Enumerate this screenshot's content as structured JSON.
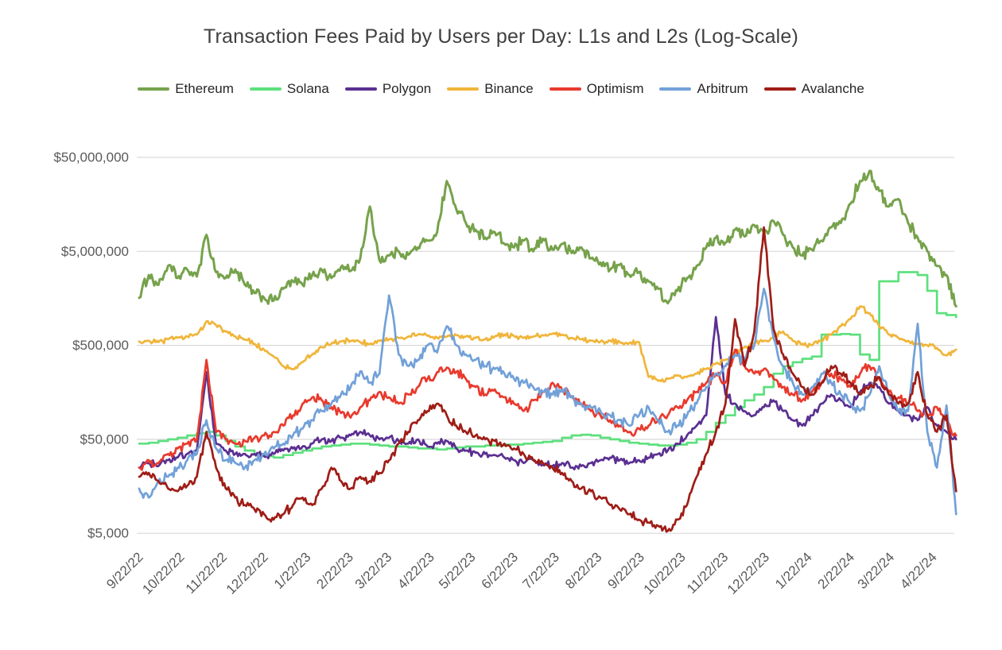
{
  "page": {
    "background": "#ffffff",
    "text_color": "#404040"
  },
  "chart_data": {
    "type": "line",
    "title": "Transaction Fees Paid by Users per Day: L1s and L2s (Log-Scale)",
    "legend_position": "top",
    "grid": "horizontal gridlines only, light gray",
    "y_axis": {
      "scale": "log",
      "unit": "USD of fees per day",
      "tick_labels": [
        "$50,000,000",
        "$5,000,000",
        "$500,000",
        "$50,000",
        "$5,000"
      ],
      "tick_values": [
        50000000,
        5000000,
        500000,
        50000,
        5000
      ],
      "range": [
        5000,
        50000000
      ]
    },
    "x_axis": {
      "tick_labels": [
        "9/22/22",
        "10/22/22",
        "11/22/22",
        "12/22/22",
        "1/22/23",
        "2/22/23",
        "3/22/23",
        "4/22/23",
        "5/22/23",
        "6/22/23",
        "7/22/23",
        "8/22/23",
        "9/22/23",
        "10/22/23",
        "11/22/23",
        "12/22/23",
        "1/22/24",
        "2/22/24",
        "3/22/24",
        "4/22/24"
      ],
      "start_date": "9/22/22",
      "end_date": "5/6/24",
      "label_rotation_deg": 45
    },
    "sampling": "weekly samples read from daily chart; index 0 = 9/22/22, step = 7 days, 86 points per series",
    "series": [
      {
        "name": "Ethereum",
        "color": "#76a24b",
        "line_style": "solid",
        "values": [
          1600000,
          2800000,
          2200000,
          3500000,
          2600000,
          3200000,
          2700000,
          7500000,
          3000000,
          2600000,
          3200000,
          2200000,
          1800000,
          1600000,
          1500000,
          2000000,
          2400000,
          2200000,
          2800000,
          3200000,
          2600000,
          3400000,
          3100000,
          4200000,
          15000000,
          4000000,
          4500000,
          5000000,
          4600000,
          5500000,
          6500000,
          8000000,
          28000000,
          14000000,
          10000000,
          8500000,
          7000000,
          8000000,
          6000000,
          5500000,
          6500000,
          5000000,
          6800000,
          5200000,
          6000000,
          4800000,
          5500000,
          4200000,
          3800000,
          3200000,
          3600000,
          2800000,
          3000000,
          2400000,
          2000000,
          1400000,
          1900000,
          2600000,
          3500000,
          5500000,
          7000000,
          6200000,
          8500000,
          7200000,
          9500000,
          8000000,
          10500000,
          7500000,
          5500000,
          4500000,
          5200000,
          6500000,
          9000000,
          10000000,
          16000000,
          28000000,
          36000000,
          22000000,
          15000000,
          18000000,
          10000000,
          7000000,
          5000000,
          3500000,
          2800000,
          1300000
        ]
      },
      {
        "name": "Solana",
        "color": "#5de07d",
        "line_style": "step",
        "values": [
          45000,
          46000,
          48000,
          50000,
          52000,
          55000,
          58000,
          60000,
          55000,
          48000,
          42000,
          38000,
          35000,
          33000,
          32000,
          34000,
          36000,
          38000,
          40000,
          42000,
          43000,
          44000,
          45000,
          45000,
          44000,
          43000,
          42000,
          42000,
          41000,
          40000,
          40000,
          39000,
          40000,
          41000,
          42000,
          42000,
          43000,
          43000,
          44000,
          44000,
          45000,
          46000,
          47000,
          48000,
          52000,
          55000,
          56000,
          55000,
          52000,
          50000,
          48000,
          46000,
          45000,
          44000,
          43000,
          43000,
          44000,
          46000,
          50000,
          60000,
          75000,
          90000,
          110000,
          130000,
          150000,
          180000,
          250000,
          300000,
          330000,
          360000,
          380000,
          650000,
          650000,
          660000,
          650000,
          400000,
          350000,
          2400000,
          2400000,
          3000000,
          3000000,
          2800000,
          1900000,
          1100000,
          1050000,
          1000000
        ]
      },
      {
        "name": "Polygon",
        "color": "#5b2f91",
        "line_style": "solid",
        "values": [
          25000,
          28000,
          26000,
          30000,
          32000,
          35000,
          38000,
          260000,
          45000,
          38000,
          35000,
          35000,
          35000,
          33000,
          35000,
          38000,
          40000,
          42000,
          45000,
          50000,
          48000,
          52000,
          55000,
          60000,
          55000,
          50000,
          52000,
          48000,
          45000,
          50000,
          42000,
          45000,
          48000,
          40000,
          38000,
          36000,
          35000,
          34000,
          32000,
          30000,
          28000,
          30000,
          27000,
          26000,
          28000,
          25000,
          26000,
          28000,
          30000,
          32000,
          30000,
          28000,
          30000,
          32000,
          35000,
          38000,
          45000,
          55000,
          70000,
          90000,
          1000000,
          150000,
          120000,
          100000,
          90000,
          110000,
          130000,
          100000,
          80000,
          70000,
          90000,
          120000,
          150000,
          130000,
          110000,
          160000,
          200000,
          180000,
          120000,
          100000,
          90000,
          80000,
          110000,
          70000,
          60000,
          50000
        ]
      },
      {
        "name": "Binance",
        "color": "#f0b53a",
        "line_style": "solid",
        "values": [
          550000,
          560000,
          540000,
          580000,
          600000,
          620000,
          650000,
          900000,
          820000,
          700000,
          620000,
          580000,
          520000,
          450000,
          380000,
          300000,
          280000,
          330000,
          400000,
          480000,
          520000,
          550000,
          560000,
          540000,
          520000,
          560000,
          580000,
          600000,
          620000,
          650000,
          630000,
          600000,
          620000,
          640000,
          620000,
          600000,
          580000,
          620000,
          650000,
          630000,
          600000,
          620000,
          640000,
          660000,
          650000,
          600000,
          580000,
          560000,
          550000,
          560000,
          540000,
          530000,
          540000,
          230000,
          210000,
          220000,
          240000,
          230000,
          250000,
          280000,
          320000,
          350000,
          420000,
          480000,
          520000,
          560000,
          620000,
          700000,
          560000,
          520000,
          500000,
          560000,
          650000,
          800000,
          950000,
          1300000,
          1100000,
          800000,
          650000,
          600000,
          560000,
          520000,
          500000,
          470000,
          390000,
          450000
        ]
      },
      {
        "name": "Optimism",
        "color": "#e83a2d",
        "line_style": "solid",
        "values": [
          25000,
          30000,
          28000,
          35000,
          40000,
          45000,
          50000,
          350000,
          60000,
          50000,
          45000,
          48000,
          52000,
          55000,
          60000,
          70000,
          90000,
          120000,
          140000,
          130000,
          110000,
          95000,
          85000,
          110000,
          130000,
          160000,
          140000,
          120000,
          150000,
          180000,
          220000,
          260000,
          290000,
          260000,
          220000,
          180000,
          150000,
          170000,
          140000,
          120000,
          100000,
          130000,
          160000,
          200000,
          170000,
          140000,
          120000,
          100000,
          90000,
          80000,
          70000,
          60000,
          65000,
          70000,
          80000,
          90000,
          110000,
          130000,
          160000,
          200000,
          250000,
          200000,
          450000,
          300000,
          250000,
          280000,
          220000,
          180000,
          150000,
          130000,
          160000,
          200000,
          250000,
          220000,
          180000,
          250000,
          300000,
          220000,
          160000,
          140000,
          120000,
          100000,
          90000,
          110000,
          80000,
          55000
        ]
      },
      {
        "name": "Arbitrum",
        "color": "#72a1d8",
        "line_style": "solid",
        "values": [
          15000,
          12000,
          18000,
          20000,
          25000,
          30000,
          35000,
          80000,
          40000,
          30000,
          28000,
          25000,
          30000,
          35000,
          40000,
          45000,
          55000,
          65000,
          80000,
          100000,
          120000,
          150000,
          180000,
          265000,
          200000,
          250000,
          1700000,
          400000,
          300000,
          350000,
          500000,
          420000,
          800000,
          500000,
          400000,
          350000,
          300000,
          280000,
          250000,
          220000,
          200000,
          180000,
          160000,
          150000,
          170000,
          140000,
          120000,
          110000,
          100000,
          90000,
          80000,
          70000,
          90000,
          110000,
          80000,
          60000,
          70000,
          90000,
          120000,
          180000,
          250000,
          300000,
          400000,
          350000,
          500000,
          2000000,
          600000,
          300000,
          200000,
          150000,
          180000,
          250000,
          200000,
          150000,
          120000,
          100000,
          150000,
          300000,
          150000,
          100000,
          100000,
          850000,
          60000,
          25000,
          115000,
          8000
        ]
      },
      {
        "name": "Avalanche",
        "color": "#9f1d16",
        "line_style": "solid",
        "values": [
          20000,
          22000,
          18000,
          15000,
          14000,
          16000,
          20000,
          60000,
          25000,
          15000,
          12000,
          10000,
          9000,
          8000,
          7000,
          8000,
          10000,
          12000,
          10000,
          15000,
          25000,
          18000,
          15000,
          20000,
          18000,
          22000,
          30000,
          45000,
          60000,
          80000,
          100000,
          120000,
          90000,
          70000,
          60000,
          55000,
          50000,
          48000,
          45000,
          40000,
          35000,
          30000,
          28000,
          25000,
          22000,
          18000,
          15000,
          14000,
          12000,
          10000,
          9000,
          8000,
          7000,
          6500,
          6000,
          5300,
          7000,
          10000,
          20000,
          35000,
          60000,
          120000,
          950000,
          300000,
          700000,
          9000000,
          750000,
          400000,
          250000,
          180000,
          150000,
          200000,
          300000,
          250000,
          200000,
          150000,
          180000,
          230000,
          150000,
          120000,
          120000,
          260000,
          90000,
          60000,
          90000,
          14000
        ]
      }
    ],
    "annotations": {
      "notable_features": [
        "Nov 2022 spike across chains (index 7)",
        "Arbitrum airdrop spike ~$1.7M on 3/23/23 (index 26)",
        "Ethereum peaks ~$28M early May 2023 and ~$36M early March 2024",
        "Binance step down from ~$540K to ~$220K late Sept 2023 (index 53)",
        "Avalanche inscriptions spike ~$9M mid-Dec 2023 (index 65)",
        "Solana steps up to ~$3M plateau late March 2024"
      ]
    },
    "style": {
      "gridline_color": "#d9d9d9",
      "axis_label_color": "#595959",
      "title_color": "#404040",
      "legend_text_color": "#262626",
      "background": "#ffffff"
    }
  }
}
